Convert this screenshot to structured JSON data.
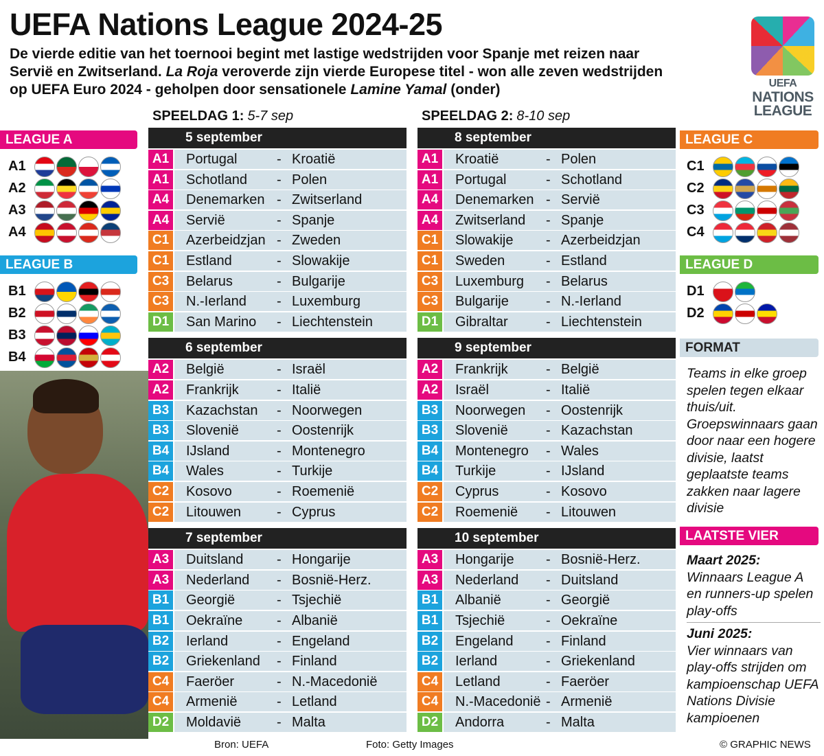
{
  "header": {
    "title": "UEFA Nations League 2024-25",
    "subtitle": [
      {
        "text": "De vierde editie van het toernooi begint met lastige wedstrijden voor Spanje met reizen naar Servië en Zwitserland. ",
        "italic": false
      },
      {
        "text": "La Roja",
        "italic": true
      },
      {
        "text": " veroverde zijn vierde Europese titel - won alle zeven wedstrijden op UEFA Euro 2024 - geholpen door sensationele ",
        "italic": false
      },
      {
        "text": "Lamine Yamal",
        "italic": true
      },
      {
        "text": " (onder)",
        "italic": false
      }
    ],
    "logo": [
      "UEFA",
      "NATIONS",
      "LEAGUE"
    ]
  },
  "league_colors": {
    "A": "#e5097f",
    "B": "#1ca3dd",
    "C": "#f07c22",
    "D": "#6cbd45"
  },
  "separator": "-",
  "speeldagen": [
    {
      "label": "SPEELDAG 1:",
      "dates": "5-7 sep",
      "days": [
        {
          "date": "5 september",
          "matches": [
            [
              "A1",
              "Portugal",
              "Kroatië"
            ],
            [
              "A1",
              "Schotland",
              "Polen"
            ],
            [
              "A4",
              "Denemarken",
              "Zwitserland"
            ],
            [
              "A4",
              "Servië",
              "Spanje"
            ],
            [
              "C1",
              "Azerbeidzjan",
              "Zweden"
            ],
            [
              "C1",
              "Estland",
              "Slowakije"
            ],
            [
              "C3",
              "Belarus",
              "Bulgarije"
            ],
            [
              "C3",
              "N.-Ierland",
              "Luxemburg"
            ],
            [
              "D1",
              "San Marino",
              "Liechtenstein"
            ]
          ]
        },
        {
          "date": "6 september",
          "matches": [
            [
              "A2",
              "België",
              "Israël"
            ],
            [
              "A2",
              "Frankrijk",
              "Italië"
            ],
            [
              "B3",
              "Kazachstan",
              "Noorwegen"
            ],
            [
              "B3",
              "Slovenië",
              "Oostenrijk"
            ],
            [
              "B4",
              "IJsland",
              "Montenegro"
            ],
            [
              "B4",
              "Wales",
              "Turkije"
            ],
            [
              "C2",
              "Kosovo",
              "Roemenië"
            ],
            [
              "C2",
              "Litouwen",
              "Cyprus"
            ]
          ]
        },
        {
          "date": "7 september",
          "matches": [
            [
              "A3",
              "Duitsland",
              "Hongarije"
            ],
            [
              "A3",
              "Nederland",
              "Bosnië-Herz."
            ],
            [
              "B1",
              "Georgië",
              "Tsjechië"
            ],
            [
              "B1",
              "Oekraïne",
              "Albanië"
            ],
            [
              "B2",
              "Ierland",
              "Engeland"
            ],
            [
              "B2",
              "Griekenland",
              "Finland"
            ],
            [
              "C4",
              "Faeröer",
              "N.-Macedonië"
            ],
            [
              "C4",
              "Armenië",
              "Letland"
            ],
            [
              "D2",
              "Moldavië",
              "Malta"
            ]
          ]
        }
      ]
    },
    {
      "label": "SPEELDAG 2:",
      "dates": "8-10 sep",
      "days": [
        {
          "date": "8 september",
          "matches": [
            [
              "A1",
              "Kroatië",
              "Polen"
            ],
            [
              "A1",
              "Portugal",
              "Schotland"
            ],
            [
              "A4",
              "Denemarken",
              "Servië"
            ],
            [
              "A4",
              "Zwitserland",
              "Spanje"
            ],
            [
              "C1",
              "Slowakije",
              "Azerbeidzjan"
            ],
            [
              "C1",
              "Sweden",
              "Estland"
            ],
            [
              "C3",
              "Luxemburg",
              "Belarus"
            ],
            [
              "C3",
              "Bulgarije",
              "N.-Ierland"
            ],
            [
              "D1",
              "Gibraltar",
              "Liechtenstein"
            ]
          ]
        },
        {
          "date": "9 september",
          "matches": [
            [
              "A2",
              "Frankrijk",
              "België"
            ],
            [
              "A2",
              "Israël",
              "Italië"
            ],
            [
              "B3",
              "Noorwegen",
              "Oostenrijk"
            ],
            [
              "B3",
              "Slovenië",
              "Kazachstan"
            ],
            [
              "B4",
              "Montenegro",
              "Wales"
            ],
            [
              "B4",
              "Turkije",
              "IJsland"
            ],
            [
              "C2",
              "Cyprus",
              "Kosovo"
            ],
            [
              "C2",
              "Roemenië",
              "Litouwen"
            ]
          ]
        },
        {
          "date": "10 september",
          "matches": [
            [
              "A3",
              "Hongarije",
              "Bosnië-Herz."
            ],
            [
              "A3",
              "Nederland",
              "Duitsland"
            ],
            [
              "B1",
              "Albanië",
              "Georgië"
            ],
            [
              "B1",
              "Tsjechië",
              "Oekraïne"
            ],
            [
              "B2",
              "Engeland",
              "Finland"
            ],
            [
              "B2",
              "Ierland",
              "Griekenland"
            ],
            [
              "C4",
              "Letland",
              "Faeröer"
            ],
            [
              "C4",
              "N.-Macedonië",
              "Armenië"
            ],
            [
              "D2",
              "Andorra",
              "Malta"
            ]
          ]
        }
      ]
    }
  ],
  "leagues": [
    {
      "title": "LEAGUE A",
      "groups": [
        "A1",
        "A2",
        "A3",
        "A4"
      ]
    },
    {
      "title": "LEAGUE B",
      "groups": [
        "B1",
        "B2",
        "B3",
        "B4"
      ]
    },
    {
      "title": "LEAGUE C",
      "groups": [
        "C1",
        "C2",
        "C3",
        "C4"
      ]
    },
    {
      "title": "LEAGUE D",
      "groups": [
        "D1",
        "D2"
      ]
    }
  ],
  "format": {
    "title": "FORMAT",
    "text": "Teams in elke groep spelen tegen elkaar thuis/uit. Groepswinnaars gaan door naar een hogere divisie, laatst geplaatste teams zakken naar lagere divisie"
  },
  "final_four": {
    "title": "LAATSTE VIER",
    "items": [
      {
        "heading": "Maart 2025:",
        "text": "Winnaars League A en runners-up spelen play-offs"
      },
      {
        "heading": "Juni 2025:",
        "text": "Vier winnaars van play-offs strijden om kampioenschap UEFA Nations Divisie kampioenen"
      }
    ]
  },
  "footer": {
    "source": "Bron: UEFA",
    "photo": "Foto: Getty Images",
    "credit": "© GRAPHIC NEWS"
  }
}
